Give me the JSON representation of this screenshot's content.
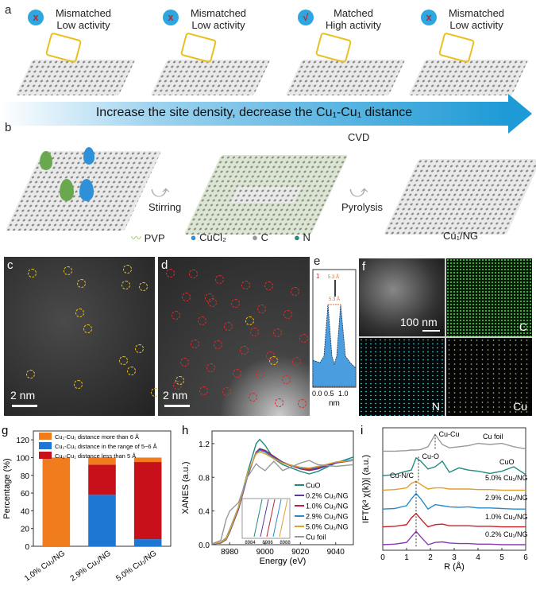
{
  "panel_labels": {
    "a": "a",
    "b": "b",
    "c": "c",
    "d": "d",
    "e": "e",
    "f": "f",
    "g": "g",
    "h": "h",
    "i": "i"
  },
  "panel_a": {
    "sites": [
      {
        "icon": "x",
        "line1": "Mismatched",
        "line2": "Low activity"
      },
      {
        "icon": "x",
        "line1": "Mismatched",
        "line2": "Low activity"
      },
      {
        "icon": "√",
        "line1": "Matched",
        "line2": "High activity"
      },
      {
        "icon": "x",
        "line1": "Mismatched",
        "line2": "Low activity"
      }
    ],
    "arrow_text": "Increase the site density, decrease the Cu₁-Cu₁ distance",
    "arrow_color": "#1e9ad6"
  },
  "panel_b": {
    "step1": "Stirring",
    "step2_top": "CVD",
    "step2_bottom": "Pyrolysis",
    "legend": {
      "pvp": "PVP",
      "cucl2": "CuCl₂",
      "c": "C",
      "n": "N"
    },
    "product": "Cu₁/NG"
  },
  "panel_c": {
    "scale": "2 nm"
  },
  "panel_d": {
    "scale": "2 nm"
  },
  "panel_e": {
    "marker": "1",
    "distance_top": "5.3 Å",
    "distance_profile": "5.3 Å",
    "xticks": [
      "0.0",
      "0.5",
      "1.0"
    ],
    "xlabel": "nm"
  },
  "panel_f": {
    "scale": "100 nm",
    "maps": [
      "C",
      "N",
      "Cu"
    ],
    "colors": {
      "C": "#3ec83e",
      "N": "#40c0c0",
      "Cu": "#d8d8a0"
    }
  },
  "chart_data": [
    {
      "panel": "g",
      "type": "bar",
      "stacked": true,
      "categories": [
        "1.0% Cu₁/NG",
        "2.9% Cu₁/NG",
        "5.0% Cu₁/NG"
      ],
      "series": [
        {
          "name": "Cu₁-Cu₁ distance in the range of 5~6 Å",
          "color": "#1f77d4",
          "values": [
            0,
            58,
            8
          ]
        },
        {
          "name": "Cu₁-Cu₁ distance less than 5 Å",
          "color": "#c8101a",
          "values": [
            0,
            34,
            87
          ]
        },
        {
          "name": "Cu₁-Cu₁ distance more than 6 Å",
          "color": "#f07c1e",
          "values": [
            100,
            8,
            5
          ]
        }
      ],
      "legend_order": [
        2,
        0,
        1
      ],
      "ylabel": "Percentage (%)",
      "ylim": [
        0,
        130
      ],
      "yticks": [
        0,
        20,
        40,
        60,
        80,
        100,
        120
      ],
      "legend": "top"
    },
    {
      "panel": "h",
      "type": "line",
      "xlabel": "Energy (eV)",
      "ylabel": "XANES (a.u.)",
      "xlim": [
        8970,
        9050
      ],
      "ylim": [
        0,
        1.35
      ],
      "xticks": [
        8980,
        9000,
        9020,
        9040
      ],
      "yticks": [
        "0.0",
        "0.4",
        "0.8",
        "1.2"
      ],
      "inset_ticks": [
        "8984",
        "8986",
        "8988"
      ],
      "legend": "right",
      "x": [
        8970,
        8975,
        8978,
        8980,
        8985,
        8990,
        8995,
        8997,
        9000,
        9005,
        9010,
        9020,
        9025,
        9030,
        9040,
        9050
      ],
      "series": [
        {
          "name": "CuO",
          "color": "#1f8a80",
          "values": [
            0.01,
            0.03,
            0.08,
            0.18,
            0.45,
            0.85,
            1.2,
            1.25,
            1.18,
            1.02,
            0.95,
            0.87,
            0.84,
            0.87,
            0.97,
            1.04
          ]
        },
        {
          "name": "0.2% Cu₁/NG",
          "color": "#5a3a9a",
          "values": [
            0.01,
            0.02,
            0.06,
            0.15,
            0.42,
            0.8,
            1.1,
            1.14,
            1.12,
            1.05,
            0.98,
            0.9,
            0.88,
            0.9,
            0.97,
            1.0
          ]
        },
        {
          "name": "1.0% Cu₁/NG",
          "color": "#c0203a",
          "values": [
            0.01,
            0.02,
            0.06,
            0.15,
            0.43,
            0.81,
            1.1,
            1.13,
            1.11,
            1.04,
            0.97,
            0.9,
            0.89,
            0.91,
            0.98,
            1.0
          ]
        },
        {
          "name": "2.9% Cu₁/NG",
          "color": "#2b8ac8",
          "values": [
            0.01,
            0.02,
            0.07,
            0.16,
            0.44,
            0.82,
            1.09,
            1.12,
            1.1,
            1.03,
            0.97,
            0.91,
            0.9,
            0.92,
            0.98,
            1.01
          ]
        },
        {
          "name": "5.0% Cu₁/NG",
          "color": "#e0a030",
          "values": [
            0.01,
            0.03,
            0.07,
            0.17,
            0.45,
            0.84,
            1.08,
            1.1,
            1.08,
            1.02,
            0.97,
            0.92,
            0.91,
            0.93,
            0.98,
            1.0
          ]
        },
        {
          "name": "Cu foil",
          "color": "#999999",
          "values": [
            0.01,
            0.05,
            0.3,
            0.4,
            0.5,
            0.8,
            0.96,
            0.92,
            0.88,
            0.99,
            0.88,
            0.97,
            1.0,
            0.95,
            0.93,
            0.95
          ]
        }
      ]
    },
    {
      "panel": "i",
      "type": "line",
      "xlabel": "R (Å)",
      "ylabel": "IFT(k³ χ(k))| (a.u.)",
      "xlim": [
        0,
        6
      ],
      "ylim": [
        0,
        11
      ],
      "xticks": [
        0,
        1,
        2,
        3,
        4,
        5,
        6
      ],
      "annotations": [
        "Cu-Cu",
        "Cu-O",
        "Cu-N/C"
      ],
      "x": [
        0,
        0.5,
        1,
        1.2,
        1.4,
        1.6,
        1.9,
        2.2,
        2.5,
        2.8,
        3.2,
        3.6,
        4,
        4.5,
        5,
        5.5,
        6
      ],
      "series": [
        {
          "name": "0.2% Cu₁/NG",
          "color": "#8a3ab0",
          "values": [
            0.5,
            0.55,
            0.7,
            1.2,
            1.7,
            1.2,
            0.5,
            0.7,
            0.75,
            0.65,
            0.6,
            0.6,
            0.55,
            0.55,
            0.5,
            0.5,
            0.5
          ]
        },
        {
          "name": "1.0% Cu₁/NG",
          "color": "#c8202a",
          "values": [
            2.1,
            2.15,
            2.3,
            2.9,
            3.3,
            2.8,
            2.1,
            2.3,
            2.35,
            2.2,
            2.2,
            2.2,
            2.15,
            2.15,
            2.1,
            2.1,
            2.1
          ]
        },
        {
          "name": "2.9% Cu₁/NG",
          "color": "#2b8ac8",
          "values": [
            3.7,
            3.75,
            4.0,
            4.6,
            5.1,
            4.6,
            3.7,
            4.1,
            4.0,
            3.9,
            3.85,
            3.9,
            3.8,
            3.8,
            3.75,
            3.7,
            3.7
          ]
        },
        {
          "name": "5.0% Cu₁/NG",
          "color": "#e0a030",
          "values": [
            5.4,
            5.45,
            5.6,
            6.0,
            6.2,
            5.9,
            5.5,
            5.6,
            5.6,
            5.5,
            5.5,
            5.5,
            5.45,
            5.45,
            5.4,
            5.4,
            5.4
          ]
        },
        {
          "name": "CuO",
          "color": "#1f8a80",
          "values": [
            6.7,
            6.8,
            7.1,
            7.2,
            8.3,
            8.0,
            7.3,
            7.5,
            8.0,
            7.0,
            7.4,
            7.2,
            7.1,
            6.9,
            7.1,
            7.5,
            6.8
          ]
        },
        {
          "name": "Cu foil",
          "color": "#999999",
          "values": [
            8.9,
            8.9,
            8.95,
            9.0,
            9.0,
            9.05,
            9.3,
            10.4,
            9.5,
            9.2,
            9.3,
            9.4,
            9.6,
            9.5,
            9.6,
            9.3,
            9.1
          ]
        }
      ]
    }
  ]
}
